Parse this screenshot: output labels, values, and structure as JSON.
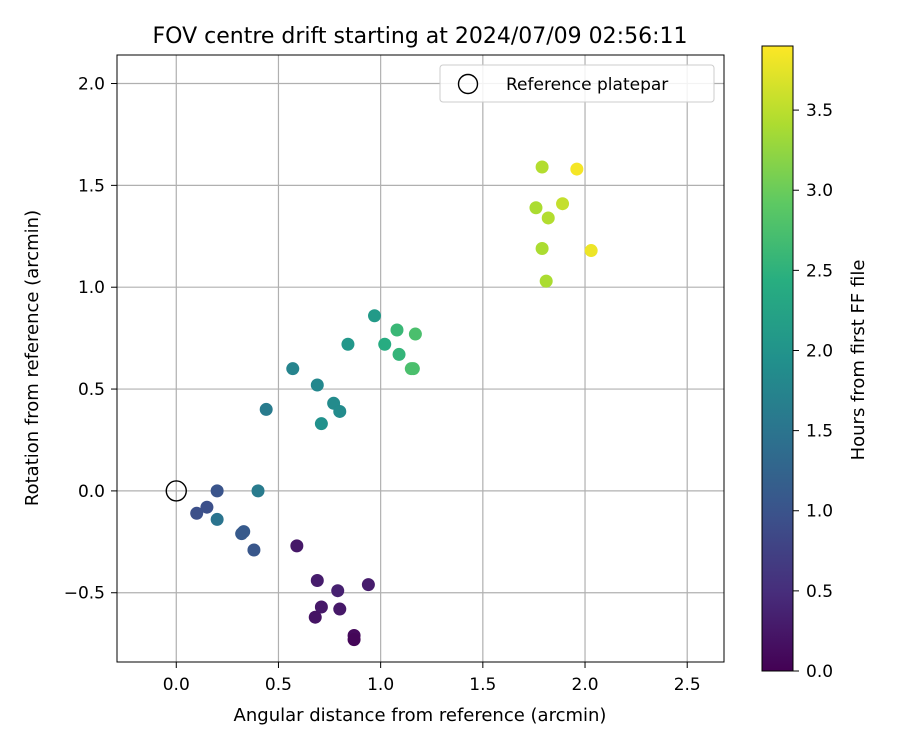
{
  "chart_data": {
    "type": "scatter",
    "title": "FOV centre drift starting at 2024/07/09 02:56:11",
    "xlabel": "Angular distance from reference (arcmin)",
    "ylabel": "Rotation from reference (arcmin)",
    "xlim": [
      -0.29,
      2.68
    ],
    "ylim": [
      -0.84,
      2.14
    ],
    "x_ticks": [
      {
        "value": 0.0,
        "label": "0.0"
      },
      {
        "value": 0.5,
        "label": "0.5"
      },
      {
        "value": 1.0,
        "label": "1.0"
      },
      {
        "value": 1.5,
        "label": "1.5"
      },
      {
        "value": 2.0,
        "label": "2.0"
      },
      {
        "value": 2.5,
        "label": "2.5"
      }
    ],
    "y_ticks": [
      {
        "value": -0.5,
        "label": "−0.5"
      },
      {
        "value": 0.0,
        "label": "0.0"
      },
      {
        "value": 0.5,
        "label": "0.5"
      },
      {
        "value": 1.0,
        "label": "1.0"
      },
      {
        "value": 1.5,
        "label": "1.5"
      },
      {
        "value": 2.0,
        "label": "2.0"
      }
    ],
    "grid": true,
    "legend": {
      "placement": "upper right",
      "entries": [
        {
          "label": "Reference platepar",
          "marker": "open-circle"
        }
      ]
    },
    "reference_point": {
      "x": 0.0,
      "y": 0.0
    },
    "colorbar": {
      "label": "Hours from first FF file",
      "colormap": "viridis",
      "range": [
        0.0,
        3.9
      ],
      "ticks": [
        {
          "value": 0.0,
          "label": "0.0"
        },
        {
          "value": 0.5,
          "label": "0.5"
        },
        {
          "value": 1.0,
          "label": "1.0"
        },
        {
          "value": 1.5,
          "label": "1.5"
        },
        {
          "value": 2.0,
          "label": "2.0"
        },
        {
          "value": 2.5,
          "label": "2.5"
        },
        {
          "value": 3.0,
          "label": "3.0"
        },
        {
          "value": 3.5,
          "label": "3.5"
        }
      ]
    },
    "points": [
      {
        "x": 0.59,
        "y": -0.27,
        "c": 0.25
      },
      {
        "x": 0.69,
        "y": -0.44,
        "c": 0.3
      },
      {
        "x": 0.79,
        "y": -0.49,
        "c": 0.35
      },
      {
        "x": 0.94,
        "y": -0.46,
        "c": 0.3
      },
      {
        "x": 0.71,
        "y": -0.57,
        "c": 0.25
      },
      {
        "x": 0.8,
        "y": -0.58,
        "c": 0.25
      },
      {
        "x": 0.68,
        "y": -0.62,
        "c": 0.2
      },
      {
        "x": 0.87,
        "y": -0.71,
        "c": 0.1
      },
      {
        "x": 0.87,
        "y": -0.73,
        "c": 0.05
      },
      {
        "x": 0.2,
        "y": 0.0,
        "c": 1.0
      },
      {
        "x": 0.1,
        "y": -0.11,
        "c": 0.95
      },
      {
        "x": 0.15,
        "y": -0.08,
        "c": 0.95
      },
      {
        "x": 0.2,
        "y": -0.14,
        "c": 1.5
      },
      {
        "x": 0.33,
        "y": -0.2,
        "c": 1.1
      },
      {
        "x": 0.32,
        "y": -0.21,
        "c": 1.1
      },
      {
        "x": 0.38,
        "y": -0.29,
        "c": 1.05
      },
      {
        "x": 0.4,
        "y": 0.0,
        "c": 1.6
      },
      {
        "x": 0.44,
        "y": 0.4,
        "c": 1.6
      },
      {
        "x": 0.57,
        "y": 0.6,
        "c": 1.75
      },
      {
        "x": 0.69,
        "y": 0.52,
        "c": 1.8
      },
      {
        "x": 0.77,
        "y": 0.43,
        "c": 1.85
      },
      {
        "x": 0.8,
        "y": 0.39,
        "c": 1.85
      },
      {
        "x": 0.71,
        "y": 0.33,
        "c": 1.95
      },
      {
        "x": 0.84,
        "y": 0.72,
        "c": 2.05
      },
      {
        "x": 0.97,
        "y": 0.86,
        "c": 2.1
      },
      {
        "x": 1.02,
        "y": 0.72,
        "c": 2.4
      },
      {
        "x": 1.08,
        "y": 0.79,
        "c": 2.6
      },
      {
        "x": 1.09,
        "y": 0.67,
        "c": 2.55
      },
      {
        "x": 1.17,
        "y": 0.77,
        "c": 2.75
      },
      {
        "x": 1.16,
        "y": 0.6,
        "c": 2.75
      },
      {
        "x": 1.15,
        "y": 0.6,
        "c": 2.75
      },
      {
        "x": 1.79,
        "y": 1.59,
        "c": 3.45
      },
      {
        "x": 1.96,
        "y": 1.58,
        "c": 3.85
      },
      {
        "x": 1.76,
        "y": 1.39,
        "c": 3.4
      },
      {
        "x": 1.89,
        "y": 1.41,
        "c": 3.55
      },
      {
        "x": 1.82,
        "y": 1.34,
        "c": 3.45
      },
      {
        "x": 1.79,
        "y": 1.19,
        "c": 3.4
      },
      {
        "x": 2.03,
        "y": 1.18,
        "c": 3.8
      },
      {
        "x": 1.81,
        "y": 1.03,
        "c": 3.4
      }
    ]
  }
}
